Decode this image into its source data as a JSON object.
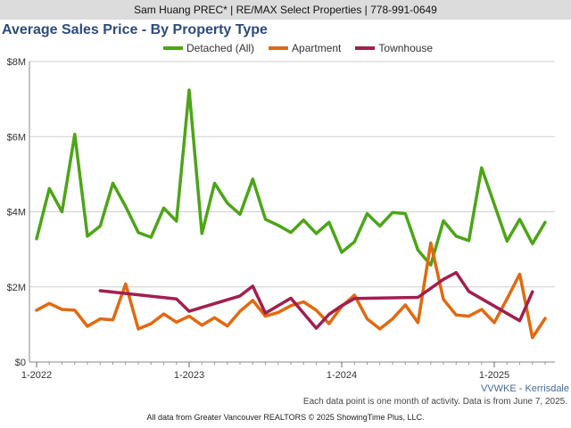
{
  "header": {
    "agent_text": "Sam Huang PREC* | RE/MAX Select Properties | 778-991-0649"
  },
  "footer": {
    "region": "VVWKE - Kerrisdale",
    "note": "Each data point is one month of activity. Data is from June 7, 2025.",
    "credit": "All data from Greater Vancouver REALTORS © 2025 ShowingTime Plus, LLC."
  },
  "colors": {
    "detached": "#4ca517",
    "apartment": "#e2690f",
    "townhouse": "#a11f4e",
    "header_bg": "#dcdcdc",
    "title": "#2e4b7c"
  },
  "chart_data": {
    "type": "line",
    "title": "Average Sales Price - By Property Type",
    "xlabel": "",
    "ylabel": "",
    "x_ticks": [
      {
        "month": 0,
        "label": "1-2022"
      },
      {
        "month": 12,
        "label": "1-2023"
      },
      {
        "month": 24,
        "label": "1-2024"
      },
      {
        "month": 36,
        "label": "1-2025"
      }
    ],
    "x_range": [
      -0.15,
      40.5
    ],
    "y_ticks": [
      {
        "value": 0,
        "label": "$0"
      },
      {
        "value": 2,
        "label": "$2M"
      },
      {
        "value": 4,
        "label": "$4M"
      },
      {
        "value": 6,
        "label": "$6M"
      },
      {
        "value": 8,
        "label": "$8M"
      }
    ],
    "ylim": [
      0,
      8
    ],
    "y_unit": "$M",
    "grid": true,
    "legend_position": "top",
    "series": [
      {
        "name": "Detached (All)",
        "color_key": "detached",
        "points": [
          [
            0,
            3.28
          ],
          [
            1,
            4.62
          ],
          [
            2,
            4.0
          ],
          [
            3,
            6.06
          ],
          [
            4,
            3.35
          ],
          [
            5,
            3.62
          ],
          [
            6,
            4.76
          ],
          [
            7,
            4.14
          ],
          [
            8,
            3.45
          ],
          [
            9,
            3.32
          ],
          [
            10,
            4.1
          ],
          [
            11,
            3.75
          ],
          [
            12,
            7.24
          ],
          [
            13,
            3.42
          ],
          [
            14,
            4.76
          ],
          [
            15,
            4.23
          ],
          [
            16,
            3.93
          ],
          [
            17,
            4.87
          ],
          [
            18,
            3.8
          ],
          [
            19,
            3.64
          ],
          [
            20,
            3.45
          ],
          [
            21,
            3.78
          ],
          [
            22,
            3.42
          ],
          [
            23,
            3.72
          ],
          [
            24,
            2.92
          ],
          [
            25,
            3.2
          ],
          [
            26,
            3.95
          ],
          [
            27,
            3.62
          ],
          [
            28,
            3.98
          ],
          [
            29,
            3.95
          ],
          [
            30,
            2.98
          ],
          [
            31,
            2.58
          ],
          [
            32,
            3.76
          ],
          [
            33,
            3.35
          ],
          [
            34,
            3.23
          ],
          [
            35,
            5.17
          ],
          [
            36,
            4.2
          ],
          [
            37,
            3.22
          ],
          [
            38,
            3.8
          ],
          [
            39,
            3.15
          ],
          [
            40,
            3.72
          ]
        ]
      },
      {
        "name": "Apartment",
        "color_key": "apartment",
        "points": [
          [
            0,
            1.38
          ],
          [
            1,
            1.56
          ],
          [
            2,
            1.4
          ],
          [
            3,
            1.38
          ],
          [
            4,
            0.95
          ],
          [
            5,
            1.15
          ],
          [
            6,
            1.12
          ],
          [
            7,
            2.08
          ],
          [
            8,
            0.88
          ],
          [
            9,
            1.02
          ],
          [
            10,
            1.28
          ],
          [
            11,
            1.06
          ],
          [
            12,
            1.22
          ],
          [
            13,
            0.98
          ],
          [
            14,
            1.18
          ],
          [
            15,
            0.96
          ],
          [
            16,
            1.35
          ],
          [
            17,
            1.64
          ],
          [
            18,
            1.22
          ],
          [
            19,
            1.32
          ],
          [
            20,
            1.5
          ],
          [
            21,
            1.6
          ],
          [
            22,
            1.38
          ],
          [
            23,
            1.02
          ],
          [
            24,
            1.48
          ],
          [
            25,
            1.78
          ],
          [
            26,
            1.15
          ],
          [
            27,
            0.88
          ],
          [
            28,
            1.15
          ],
          [
            29,
            1.52
          ],
          [
            30,
            1.05
          ],
          [
            31,
            3.17
          ],
          [
            32,
            1.67
          ],
          [
            33,
            1.25
          ],
          [
            34,
            1.22
          ],
          [
            35,
            1.4
          ],
          [
            36,
            1.05
          ],
          [
            37,
            1.68
          ],
          [
            38,
            2.34
          ],
          [
            39,
            0.65
          ],
          [
            40,
            1.16
          ]
        ]
      },
      {
        "name": "Townhouse",
        "color_key": "townhouse",
        "points": [
          [
            5,
            1.9
          ],
          [
            11,
            1.68
          ],
          [
            12,
            1.35
          ],
          [
            16,
            1.76
          ],
          [
            17,
            2.02
          ],
          [
            18,
            1.3
          ],
          [
            20,
            1.7
          ],
          [
            22,
            0.9
          ],
          [
            23,
            1.27
          ],
          [
            24,
            1.5
          ],
          [
            25,
            1.69
          ],
          [
            30,
            1.72
          ],
          [
            32,
            2.2
          ],
          [
            33,
            2.38
          ],
          [
            34,
            1.88
          ],
          [
            38,
            1.1
          ],
          [
            39,
            1.87
          ]
        ]
      }
    ]
  }
}
